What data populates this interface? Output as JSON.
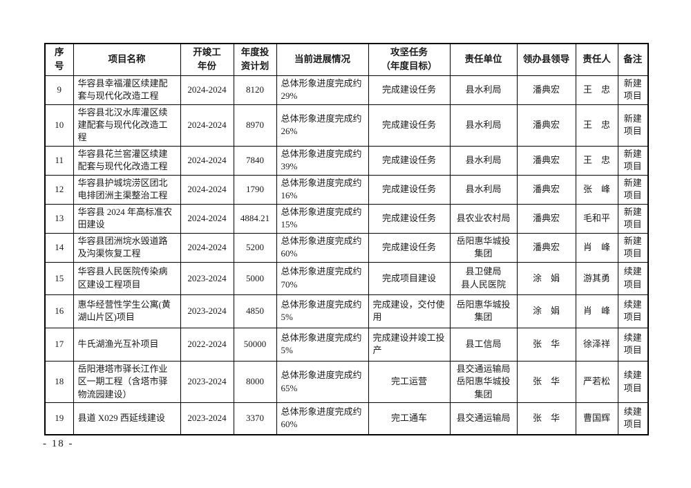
{
  "page": {
    "number_label": "- 18 -"
  },
  "table": {
    "columns": [
      {
        "id": "no",
        "label": "序\n号"
      },
      {
        "id": "name",
        "label": "项目名称"
      },
      {
        "id": "years",
        "label": "开竣工\n年份"
      },
      {
        "id": "invest",
        "label": "年度投\n资计划"
      },
      {
        "id": "progress",
        "label": "当前进展情况"
      },
      {
        "id": "task",
        "label": "攻坚任务\n（年度目标）"
      },
      {
        "id": "unit",
        "label": "责任单位"
      },
      {
        "id": "leader",
        "label": "领办县领导"
      },
      {
        "id": "person",
        "label": "责任人"
      },
      {
        "id": "remark",
        "label": "备注"
      }
    ],
    "rows": [
      {
        "no": "9",
        "name": "华容县幸福灌区续建配套与现代化改造工程",
        "years": "2024-2024",
        "invest": "8120",
        "progress": "总体形象进度完成约29%",
        "task": "完成建设任务",
        "unit": "县水利局",
        "leader": "潘典宏",
        "person": "王　忠",
        "remark": "新建项目"
      },
      {
        "no": "10",
        "name": "华容县北汉水库灌区续建配套与现代化改造工程",
        "years": "2024-2024",
        "invest": "8970",
        "progress": "总体形象进度完成约26%",
        "task": "完成建设任务",
        "unit": "县水利局",
        "leader": "潘典宏",
        "person": "王　忠",
        "remark": "新建项目"
      },
      {
        "no": "11",
        "name": "华容县花兰窖灌区续建配套与现代化改造工程",
        "years": "2024-2024",
        "invest": "7840",
        "progress": "总体形象进度完成约39%",
        "task": "完成建设任务",
        "unit": "县水利局",
        "leader": "潘典宏",
        "person": "王　忠",
        "remark": "新建项目"
      },
      {
        "no": "12",
        "name": "华容县护城垸涝区团北电排团洲主渠整治工程",
        "years": "2024-2024",
        "invest": "1790",
        "progress": "总体形象进度完成约16%",
        "task": "完成建设任务",
        "unit": "县水利局",
        "leader": "潘典宏",
        "person": "张　峰",
        "remark": "新建项目"
      },
      {
        "no": "13",
        "name": "华容县 2024 年高标准农田建设",
        "years": "2024-2024",
        "invest": "4884.21",
        "progress": "总体形象进度完成约15%",
        "task": "完成建设任务",
        "unit": "县农业农村局",
        "leader": "潘典宏",
        "person": "毛和平",
        "remark": "新建项目"
      },
      {
        "no": "14",
        "name": "华容县团洲垸水毁道路及沟渠恢复工程",
        "years": "2024-2024",
        "invest": "5200",
        "progress": "总体形象进度完成约60%",
        "task": "完成建设任务",
        "unit": "岳阳惠华城投集团",
        "leader": "潘典宏",
        "person": "肖　峰",
        "remark": "新建项目"
      },
      {
        "no": "15",
        "name": "华容县人民医院传染病区建设工程项目",
        "years": "2023-2024",
        "invest": "5000",
        "progress": "总体形象进度完成约70%",
        "task": "完成项目建设",
        "unit": "县卫健局\n县人民医院",
        "leader": "涂　娟",
        "person": "游其勇",
        "remark": "续建项目"
      },
      {
        "no": "16",
        "name": "惠华经营性学生公寓(黄湖山片区)项目",
        "years": "2023-2024",
        "invest": "4850",
        "progress": "总体形象进度完成约5%",
        "task": "完成建设，交付使用",
        "unit": "岳阳惠华城投集团",
        "leader": "涂　娟",
        "person": "肖　峰",
        "remark": "续建项目"
      },
      {
        "no": "17",
        "name": "牛氏湖渔光互补项目",
        "years": "2022-2024",
        "invest": "50000",
        "progress": "总体形象进度完成约5%",
        "task": "完成建设并竣工投产",
        "unit": "县工信局",
        "leader": "张　华",
        "person": "徐泽祥",
        "remark": "续建项目"
      },
      {
        "no": "18",
        "name": "岳阳港塔市驿长江作业区一期工程（含塔市驿物流园建设）",
        "years": "2023-2024",
        "invest": "8000",
        "progress": "总体形象进度完成约65%",
        "task": "完工运营",
        "unit": "县交通运输局\n岳阳惠华城投集团",
        "leader": "张　华",
        "person": "严若松",
        "remark": "续建项目"
      },
      {
        "no": "19",
        "name": "县道 X029 西延线建设",
        "years": "2023-2024",
        "invest": "3370",
        "progress": "总体形象进度完成约60%",
        "task": "完工通车",
        "unit": "县交通运输局",
        "leader": "张　华",
        "person": "曹国辉",
        "remark": "续建项目"
      }
    ]
  }
}
